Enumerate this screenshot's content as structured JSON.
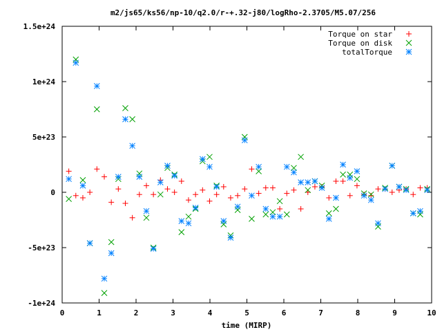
{
  "chart_data": {
    "type": "scatter",
    "title": "m2/js65/ks56/np-10/q2.0/r-+.32-j80/logRho-2.3705/M5.07/256",
    "xlabel": "time (MIRP)",
    "ylabel": "",
    "xlim": [
      0,
      10
    ],
    "ylim": [
      -1e+24,
      1.5e+24
    ],
    "grid": false,
    "legend_position": "top-right",
    "x_ticks": [
      {
        "value": 0,
        "label": "0"
      },
      {
        "value": 1,
        "label": "1"
      },
      {
        "value": 2,
        "label": "2"
      },
      {
        "value": 3,
        "label": "3"
      },
      {
        "value": 4,
        "label": "4"
      },
      {
        "value": 5,
        "label": "5"
      },
      {
        "value": 6,
        "label": "6"
      },
      {
        "value": 7,
        "label": "7"
      },
      {
        "value": 8,
        "label": "8"
      },
      {
        "value": 9,
        "label": "9"
      },
      {
        "value": 10,
        "label": "10"
      }
    ],
    "y_ticks": [
      {
        "value": -1e+24,
        "label": "-1e+24"
      },
      {
        "value": -5e+23,
        "label": "-5e+23"
      },
      {
        "value": 0,
        "label": "0"
      },
      {
        "value": 5e+23,
        "label": "5e+23"
      },
      {
        "value": 1e+24,
        "label": "1e+24"
      },
      {
        "value": 1.5e+24,
        "label": "1.5e+24"
      }
    ],
    "x": [
      0.18,
      0.37,
      0.56,
      0.75,
      0.94,
      1.14,
      1.33,
      1.52,
      1.71,
      1.9,
      2.09,
      2.28,
      2.47,
      2.66,
      2.85,
      3.04,
      3.23,
      3.42,
      3.61,
      3.8,
      3.99,
      4.18,
      4.37,
      4.56,
      4.75,
      4.94,
      5.13,
      5.32,
      5.51,
      5.7,
      5.89,
      6.08,
      6.27,
      6.46,
      6.65,
      6.84,
      7.03,
      7.22,
      7.41,
      7.6,
      7.79,
      7.98,
      8.17,
      8.36,
      8.55,
      8.74,
      8.93,
      9.12,
      9.31,
      9.5,
      9.69,
      9.88
    ],
    "series": [
      {
        "name": "Torque on star",
        "marker": "plus",
        "color": "#ff0000",
        "values": [
          1.9e+23,
          -3e+22,
          -5e+22,
          0,
          2.1e+23,
          1.4e+23,
          -9e+22,
          3e+22,
          -1e+23,
          -2.3e+23,
          -2e+22,
          6e+22,
          -2e+22,
          1.1e+23,
          3e+22,
          0,
          1e+23,
          -7e+22,
          -2e+22,
          2e+22,
          -8e+22,
          -2e+22,
          5e+22,
          -5e+22,
          -3e+22,
          3e+22,
          2.1e+23,
          -1e+22,
          4e+22,
          4e+22,
          -1.5e+23,
          -1e+22,
          2e+22,
          -1.5e+23,
          0,
          5e+22,
          5e+22,
          -5e+22,
          1e+23,
          1e+23,
          -3e+22,
          6e+22,
          -2e+22,
          -3e+22,
          3e+22,
          3e+22,
          0,
          2e+22,
          3e+22,
          -2e+22,
          4e+22,
          4e+22
        ]
      },
      {
        "name": "Torque on disk",
        "marker": "cross",
        "color": "#00a000",
        "values": [
          -6e+22,
          1.2e+24,
          1.1e+23,
          -4.6e+23,
          7.5e+23,
          -9.1e+23,
          -4.5e+23,
          1.2e+23,
          7.6e+23,
          6.6e+23,
          1.7e+23,
          -2.3e+23,
          -5e+23,
          -2e+22,
          2.2e+23,
          1.6e+23,
          -3.6e+23,
          -2.2e+23,
          -1.5e+23,
          2.8e+23,
          3.2e+23,
          6e+22,
          -2.9e+23,
          -3.9e+23,
          -1.6e+23,
          5e+23,
          -2.4e+23,
          1.9e+23,
          -2e+23,
          -1.8e+23,
          -8e+22,
          -2e+23,
          2.2e+23,
          3.2e+23,
          2e+22,
          1e+23,
          6e+22,
          -1.9e+23,
          -1.5e+23,
          1.6e+23,
          1.6e+23,
          1.2e+23,
          -1e+22,
          -2e+22,
          -3.1e+23,
          4e+22,
          2.4e+23,
          5e+22,
          3e+22,
          -1.9e+23,
          -2e+23,
          3e+22
        ]
      },
      {
        "name": "totalTorque",
        "marker": "star",
        "color": "#0080ff",
        "values": [
          1.2e+23,
          1.17e+24,
          6e+22,
          -4.6e+23,
          9.6e+23,
          -7.8e+23,
          -5.5e+23,
          1.4e+23,
          6.6e+23,
          4.2e+23,
          1.4e+23,
          -1.7e+23,
          -5.1e+23,
          9e+22,
          2.4e+23,
          1.5e+23,
          -2.6e+23,
          -2.8e+23,
          -1.4e+23,
          3e+23,
          2.3e+23,
          5e+22,
          -2.6e+23,
          -4.1e+23,
          -1.3e+23,
          4.7e+23,
          -3e+22,
          2.3e+23,
          -1.5e+23,
          -2.2e+23,
          -2.2e+23,
          2.3e+23,
          1.8e+23,
          9e+22,
          9e+22,
          1e+23,
          4e+22,
          -2.4e+23,
          -5e+22,
          2.5e+23,
          1.3e+23,
          1.9e+23,
          -3e+22,
          -7e+22,
          -2.8e+23,
          3e+22,
          2.4e+23,
          5e+22,
          2e+22,
          -1.9e+23,
          -1.7e+23,
          2e+22
        ]
      }
    ]
  }
}
